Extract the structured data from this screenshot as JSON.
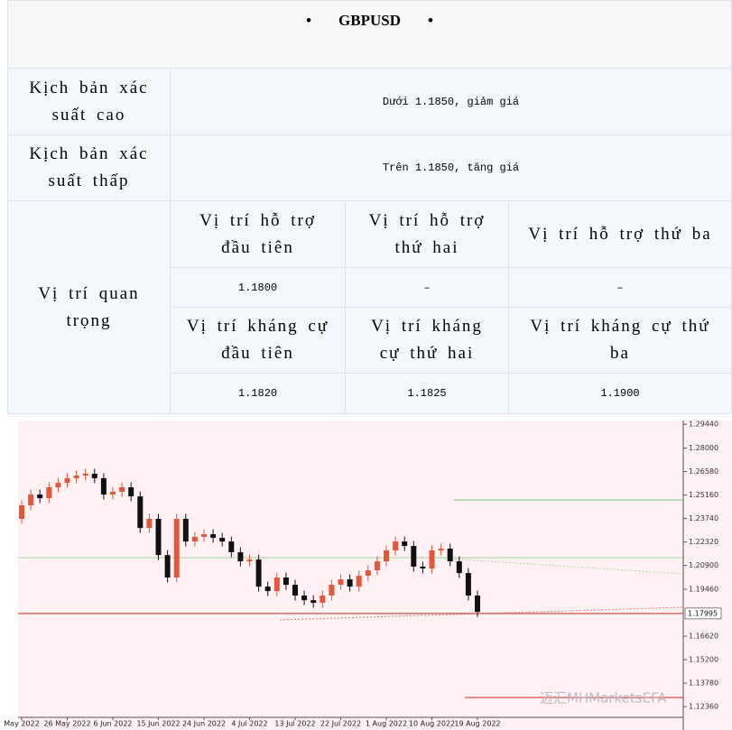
{
  "header": {
    "title": "GBPUSD"
  },
  "table": {
    "scenarios": [
      {
        "label": "Kịch bản xác suất cao",
        "text": "Dưới 1.1850, giảm giá"
      },
      {
        "label": "Kịch bản xác suất thấp",
        "text": "Trên 1.1850, tăng giá"
      }
    ],
    "key_levels": {
      "label": "Vị trí quan trọng",
      "support_headers": [
        "Vị trí hỗ trợ đầu tiên",
        "Vị trí hỗ trợ thứ hai",
        "Vị trí hỗ trợ thứ ba"
      ],
      "support_values": [
        "1.1800",
        "–",
        "–"
      ],
      "resistance_headers": [
        "Vị trí kháng cự đầu tiên",
        "Vị trí kháng cự thứ hai",
        "Vị trí kháng cự thứ ba"
      ],
      "resistance_values": [
        "1.1820",
        "1.1825",
        "1.1900"
      ]
    }
  },
  "chart_data": {
    "type": "candlestick",
    "categories": [
      "May 2022",
      null,
      null,
      null,
      null,
      "26 May 2022",
      null,
      null,
      null,
      null,
      "6 Jun 2022",
      null,
      null,
      null,
      null,
      "15 Jun 2022",
      null,
      null,
      null,
      null,
      "24 Jun 2022",
      null,
      null,
      null,
      null,
      "4 Jul 2022",
      null,
      null,
      null,
      null,
      "13 Jul 2022",
      null,
      null,
      null,
      null,
      "22 Jul 2022",
      null,
      null,
      null,
      null,
      "1 Aug 2022",
      null,
      null,
      null,
      null,
      "10 Aug 2022",
      null,
      null,
      null,
      null,
      "19 Aug 2022"
    ],
    "open": [
      1.2372,
      1.2454,
      1.2519,
      1.2497,
      1.2563,
      1.259,
      1.2618,
      1.2634,
      1.2645,
      1.2618,
      1.2519,
      1.2536,
      1.2563,
      1.2508,
      1.2317,
      1.2372,
      1.2153,
      1.2017,
      1.2372,
      1.2235,
      1.2263,
      1.2279,
      1.2257,
      1.2235,
      1.217,
      1.2115,
      1.2126,
      1.1962,
      1.1935,
      1.2017,
      1.1973,
      1.1908,
      1.188,
      1.1864,
      1.1908,
      1.1973,
      1.2006,
      1.1962,
      1.2028,
      1.2061,
      1.2115,
      1.2181,
      1.2235,
      1.2208,
      1.2083,
      1.2072,
      1.2181,
      1.2192,
      1.2115,
      1.2044,
      1.1908
    ],
    "high": [
      1.2484,
      1.2549,
      1.2549,
      1.2593,
      1.262,
      1.2648,
      1.2664,
      1.2675,
      1.2675,
      1.2648,
      1.2566,
      1.2593,
      1.2593,
      1.2538,
      1.2402,
      1.2402,
      1.2183,
      1.2402,
      1.2402,
      1.2293,
      1.2309,
      1.2309,
      1.2287,
      1.2265,
      1.22,
      1.2156,
      1.2156,
      1.1992,
      1.2047,
      1.2047,
      1.2003,
      1.1938,
      1.191,
      1.1938,
      1.2003,
      1.2036,
      1.2036,
      1.2058,
      1.2091,
      1.2145,
      1.2211,
      1.2265,
      1.2265,
      1.2238,
      1.2113,
      1.2211,
      1.2222,
      1.2222,
      1.2145,
      1.2074,
      1.1938
    ],
    "low": [
      1.2342,
      1.2424,
      1.2467,
      1.2467,
      1.2533,
      1.256,
      1.2588,
      1.2604,
      1.2588,
      1.2489,
      1.2489,
      1.2506,
      1.2478,
      1.2287,
      1.2287,
      1.2123,
      1.1987,
      1.1987,
      1.2205,
      1.2205,
      1.2233,
      1.2227,
      1.2205,
      1.214,
      1.2085,
      1.2085,
      1.1932,
      1.1905,
      1.1905,
      1.1943,
      1.1878,
      1.185,
      1.1834,
      1.1834,
      1.1878,
      1.1943,
      1.1932,
      1.1932,
      1.1998,
      1.2031,
      1.2085,
      1.2151,
      1.2178,
      1.2053,
      1.2042,
      1.2042,
      1.2151,
      1.2085,
      1.2014,
      1.1878,
      1.1779
    ],
    "close": [
      1.2454,
      1.2519,
      1.2497,
      1.2563,
      1.259,
      1.2618,
      1.2634,
      1.2645,
      1.2618,
      1.2519,
      1.2536,
      1.2563,
      1.2508,
      1.2317,
      1.2372,
      1.2153,
      1.2017,
      1.2372,
      1.2235,
      1.2263,
      1.2279,
      1.2257,
      1.2235,
      1.217,
      1.2115,
      1.2126,
      1.1962,
      1.1935,
      1.2017,
      1.1973,
      1.1908,
      1.188,
      1.1864,
      1.1908,
      1.1973,
      1.2006,
      1.1962,
      1.2028,
      1.2061,
      1.2115,
      1.2181,
      1.2235,
      1.2208,
      1.2083,
      1.2072,
      1.2181,
      1.2192,
      1.2115,
      1.2044,
      1.1908,
      1.1809
    ],
    "up_color": "#e4573a",
    "down_color": "#111111",
    "ylim": [
      1.1171,
      1.2967
    ],
    "yticks": [
      {
        "value": 1.2944,
        "label": "1.29440"
      },
      {
        "value": 1.28,
        "label": "1.28000"
      },
      {
        "value": 1.2658,
        "label": "1.26580"
      },
      {
        "value": 1.2516,
        "label": "1.25160"
      },
      {
        "value": 1.2374,
        "label": "1.23740"
      },
      {
        "value": 1.2232,
        "label": "1.22320"
      },
      {
        "value": 1.209,
        "label": "1.20900"
      },
      {
        "value": 1.1946,
        "label": "1.19460"
      },
      {
        "value": 1.1662,
        "label": "1.16620"
      },
      {
        "value": 1.152,
        "label": "1.15200"
      },
      {
        "value": 1.1378,
        "label": "1.13780"
      },
      {
        "value": 1.1236,
        "label": "1.12360"
      }
    ],
    "last_price": {
      "value": 1.17995,
      "label": "1.17995",
      "color": "#d9534f"
    },
    "levels": [
      {
        "value": 1.2486,
        "color": "#8fd08f"
      },
      {
        "value": 1.2137,
        "color": "#a9d9a0"
      },
      {
        "value": 1.1291,
        "color": "#e05050"
      }
    ],
    "watermark": "迈汇MHMarketsEFA"
  }
}
